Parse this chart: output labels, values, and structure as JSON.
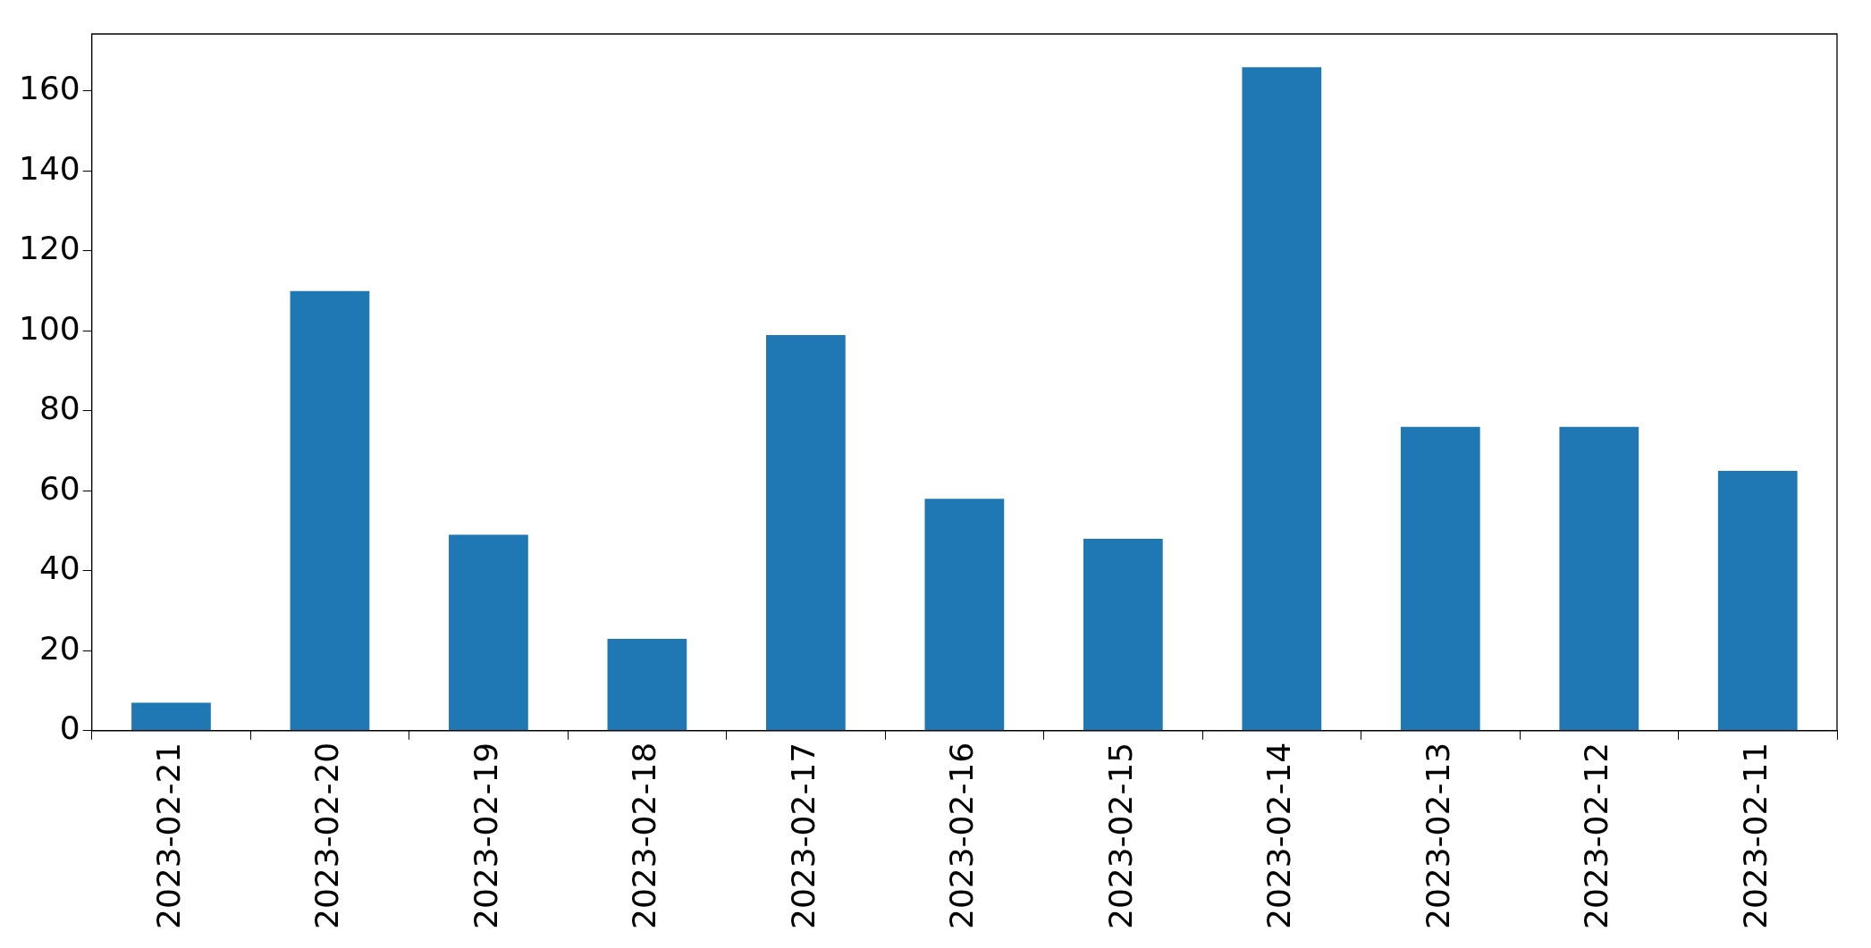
{
  "chart_data": {
    "type": "bar",
    "categories": [
      "2023-02-21",
      "2023-02-20",
      "2023-02-19",
      "2023-02-18",
      "2023-02-17",
      "2023-02-16",
      "2023-02-15",
      "2023-02-14",
      "2023-02-13",
      "2023-02-12",
      "2023-02-11"
    ],
    "values": [
      7,
      110,
      49,
      23,
      99,
      58,
      48,
      166,
      76,
      76,
      65
    ],
    "color": "#1f77b4",
    "ylim": [
      0,
      174.3
    ],
    "yticks": [
      0,
      20,
      40,
      60,
      80,
      100,
      120,
      140,
      160
    ],
    "grid": false,
    "legend": false
  }
}
